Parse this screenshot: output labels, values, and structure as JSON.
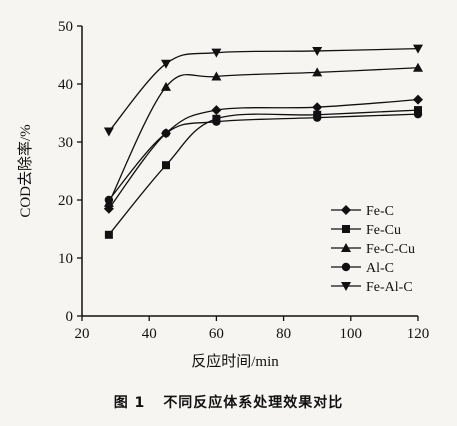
{
  "chart_data": {
    "type": "line",
    "xlabel": "反应时间/min",
    "ylabel": "COD去除率/%",
    "xlim": [
      20,
      120
    ],
    "ylim": [
      0,
      50
    ],
    "xticks": [
      20,
      40,
      60,
      80,
      100,
      120
    ],
    "yticks": [
      0,
      10,
      20,
      30,
      40,
      50
    ],
    "grid": false,
    "legend_position": "lower-right",
    "x": [
      28,
      45,
      60,
      90,
      120
    ],
    "series": [
      {
        "name": "Fe-C",
        "marker": "diamond",
        "values": [
          18.5,
          31.5,
          35.5,
          36.0,
          37.3
        ]
      },
      {
        "name": "Fe-Cu",
        "marker": "square",
        "values": [
          14.0,
          26.0,
          34.0,
          34.7,
          35.5
        ]
      },
      {
        "name": "Fe-C-Cu",
        "marker": "triangle-up",
        "values": [
          19.5,
          39.5,
          41.3,
          42.0,
          42.8
        ]
      },
      {
        "name": "Al-C",
        "marker": "circle",
        "values": [
          20.0,
          31.5,
          33.5,
          34.2,
          34.8
        ]
      },
      {
        "name": "Fe-Al-C",
        "marker": "triangle-down",
        "values": [
          31.8,
          43.5,
          45.4,
          45.7,
          46.1
        ]
      }
    ]
  },
  "caption": {
    "figure_number": "图 1",
    "title": "不同反应体系处理效果对比"
  }
}
